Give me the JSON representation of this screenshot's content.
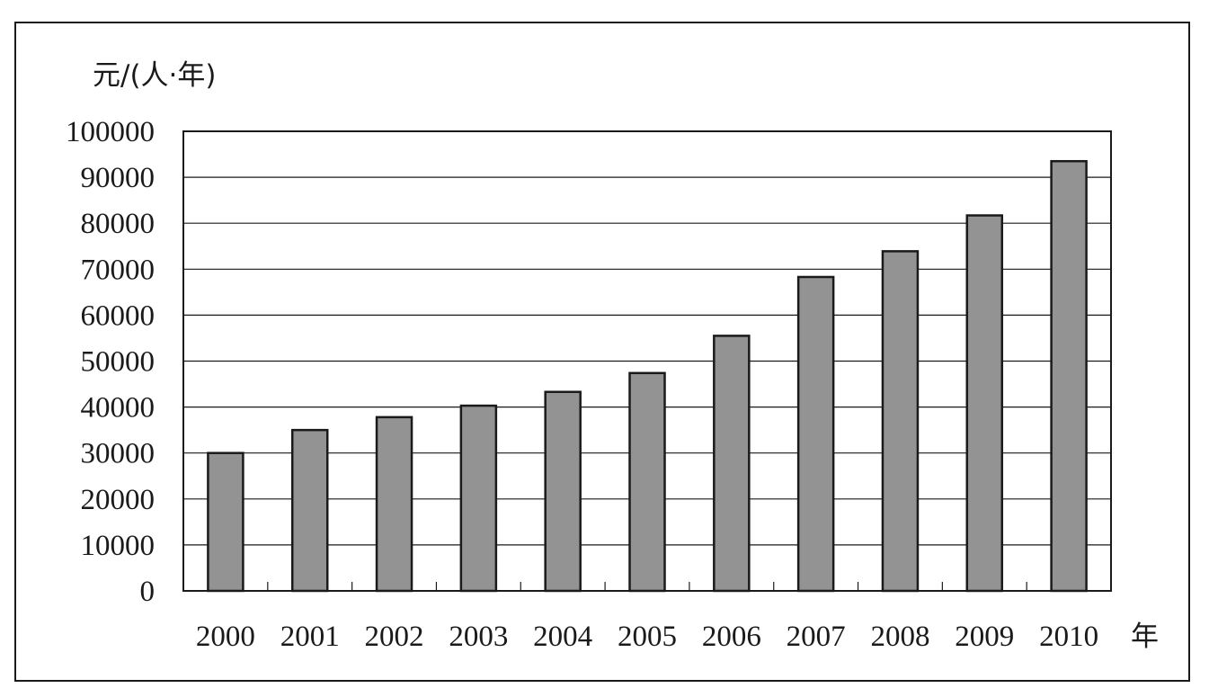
{
  "chart_data": {
    "type": "bar",
    "categories": [
      "2000",
      "2001",
      "2002",
      "2003",
      "2004",
      "2005",
      "2006",
      "2007",
      "2008",
      "2009",
      "2010"
    ],
    "values": [
      30000,
      35000,
      37800,
      40300,
      43300,
      47400,
      55500,
      68300,
      73900,
      81700,
      93500
    ],
    "title": "",
    "xlabel": "年",
    "ylabel": "元/(人·年)",
    "ylim": [
      0,
      100000
    ],
    "yticks": [
      "0",
      "10000",
      "20000",
      "30000",
      "40000",
      "50000",
      "60000",
      "70000",
      "80000",
      "90000",
      "100000"
    ],
    "grid": true,
    "legend": "none",
    "colors": {
      "bar_fill": "#939393",
      "bar_stroke": "#1a1a1a",
      "grid": "#1a1a1a",
      "axis": "#1a1a1a"
    }
  }
}
